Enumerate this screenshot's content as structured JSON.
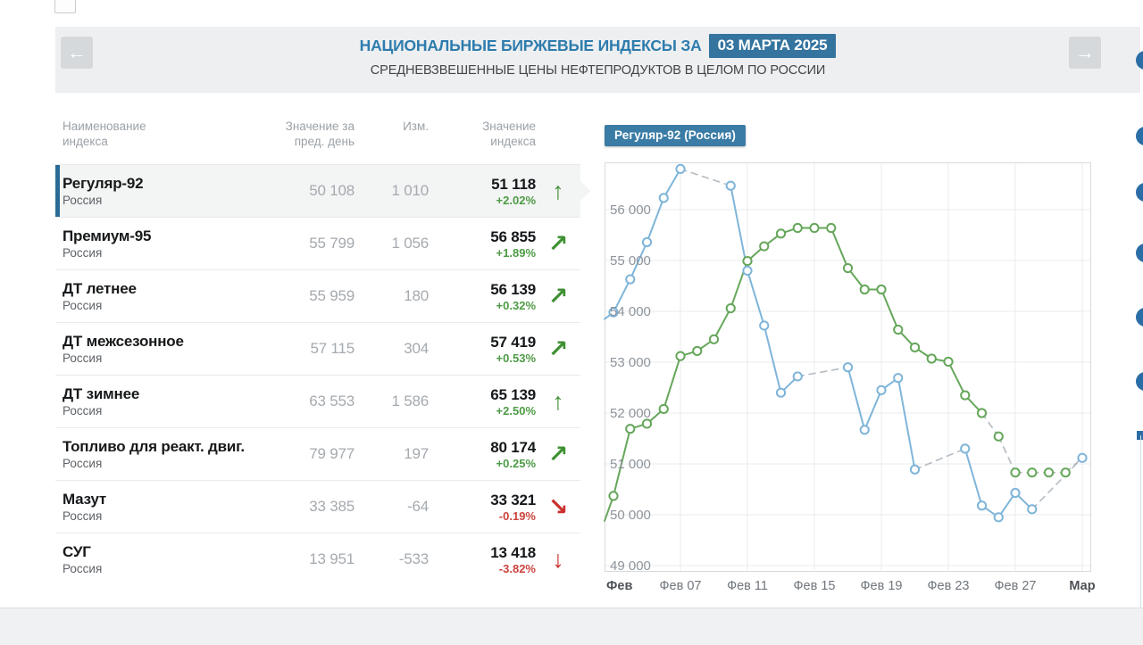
{
  "header": {
    "title": "НАЦИОНАЛЬНЫЕ БИРЖЕВЫЕ ИНДЕКСЫ ЗА",
    "date_badge": "03 МАРТА 2025",
    "subtitle": "СРЕДНЕВЗВЕШЕННЫЕ ЦЕНЫ НЕФТЕПРОДУКТОВ В ЦЕЛОМ ПО РОССИИ",
    "prev_arrow": "←",
    "next_arrow": "→"
  },
  "table": {
    "columns": [
      {
        "line1": "Наименование",
        "line2": "индекса"
      },
      {
        "line1": "Значение за",
        "line2": "пред. день"
      },
      {
        "line1": "Изм.",
        "line2": ""
      },
      {
        "line1": "Значение",
        "line2": "индекса"
      }
    ],
    "rows": [
      {
        "name": "Регуляр-92",
        "region": "Россия",
        "prev": "50 108",
        "change": "1 010",
        "value": "51 118",
        "pct": "+2.02%",
        "trend": "up",
        "selected": true
      },
      {
        "name": "Премиум-95",
        "region": "Россия",
        "prev": "55 799",
        "change": "1 056",
        "value": "56 855",
        "pct": "+1.89%",
        "trend": "up-right",
        "selected": false
      },
      {
        "name": "ДТ летнее",
        "region": "Россия",
        "prev": "55 959",
        "change": "180",
        "value": "56 139",
        "pct": "+0.32%",
        "trend": "up-right",
        "selected": false
      },
      {
        "name": "ДТ межсезонное",
        "region": "Россия",
        "prev": "57 115",
        "change": "304",
        "value": "57 419",
        "pct": "+0.53%",
        "trend": "up-right",
        "selected": false
      },
      {
        "name": "ДТ зимнее",
        "region": "Россия",
        "prev": "63 553",
        "change": "1 586",
        "value": "65 139",
        "pct": "+2.50%",
        "trend": "up",
        "selected": false
      },
      {
        "name": "Топливо для реакт. двиг.",
        "region": "Россия",
        "prev": "79 977",
        "change": "197",
        "value": "80 174",
        "pct": "+0.25%",
        "trend": "up-right",
        "selected": false
      },
      {
        "name": "Мазут",
        "region": "Россия",
        "prev": "33 385",
        "change": "-64",
        "value": "33 321",
        "pct": "-0.19%",
        "trend": "down-right",
        "selected": false
      },
      {
        "name": "СУГ",
        "region": "Россия",
        "prev": "13 951",
        "change": "-533",
        "value": "13 418",
        "pct": "-3.82%",
        "trend": "down",
        "selected": false
      }
    ]
  },
  "chart_data": {
    "type": "line",
    "title_badge": "Регуляр-92 (Россия)",
    "ylim": [
      48700,
      57100
    ],
    "grid": true,
    "y_ticks": [
      {
        "v": 56000,
        "label": "56 000"
      },
      {
        "v": 55000,
        "label": "55 000"
      },
      {
        "v": 54000,
        "label": "54 000"
      },
      {
        "v": 53000,
        "label": "53 000"
      },
      {
        "v": 52000,
        "label": "52 000"
      },
      {
        "v": 51000,
        "label": "51 000"
      },
      {
        "v": 50000,
        "label": "50 000"
      },
      {
        "v": 49000,
        "label": "49 000"
      }
    ],
    "x_ticks": [
      {
        "label": "Фев",
        "offset": 0,
        "bold": true,
        "align": "left"
      },
      {
        "label": "Фев 07",
        "offset": 4
      },
      {
        "label": "Фев 11",
        "offset": 8
      },
      {
        "label": "Фев 15",
        "offset": 12
      },
      {
        "label": "Фев 19",
        "offset": 16
      },
      {
        "label": "Фев 23",
        "offset": 20
      },
      {
        "label": "Фев 27",
        "offset": 24
      },
      {
        "label": "Мар",
        "offset": 28,
        "bold": true
      }
    ],
    "dash_color": "#b4bbc1",
    "note": "offset = days from first plotted point; dashed segments join non-trading / estimated days",
    "series": [
      {
        "name": "weighted-average-price",
        "color": "#66a75b",
        "points": [
          [
            -0.53,
            49880,
            "n"
          ],
          [
            0,
            50370
          ],
          [
            1,
            51690
          ],
          [
            2,
            51790
          ],
          [
            3,
            52080
          ],
          [
            4,
            53120
          ],
          [
            5,
            53220
          ],
          [
            6,
            53450
          ],
          [
            7,
            54060
          ],
          [
            8,
            54990
          ],
          [
            9,
            55280
          ],
          [
            10,
            55530
          ],
          [
            11,
            55640
          ],
          [
            12,
            55640
          ],
          [
            13,
            55640
          ],
          [
            14,
            54850
          ],
          [
            15,
            54430
          ],
          [
            16,
            54430
          ],
          [
            17,
            53640
          ],
          [
            18,
            53290
          ],
          [
            19,
            53070
          ],
          [
            20,
            53010
          ],
          [
            21,
            52350
          ],
          [
            22,
            52000,
            "d"
          ],
          [
            23,
            51540,
            "d"
          ],
          [
            24,
            50830,
            "d"
          ],
          [
            25,
            50830,
            "d"
          ],
          [
            26,
            50830,
            "d"
          ],
          [
            27,
            50830,
            "d"
          ],
          [
            28,
            51118,
            "n"
          ]
        ]
      },
      {
        "name": "index-value",
        "color": "#7fb5d9",
        "points": [
          [
            -0.53,
            53850,
            "n"
          ],
          [
            0,
            53980
          ],
          [
            1,
            54630
          ],
          [
            2,
            55360
          ],
          [
            3,
            56230
          ],
          [
            4,
            56800,
            "d"
          ],
          [
            7,
            56470
          ],
          [
            8,
            54800
          ],
          [
            9,
            53720
          ],
          [
            10,
            52400
          ],
          [
            11,
            52720,
            "d"
          ],
          [
            14,
            52900
          ],
          [
            15,
            51670
          ],
          [
            16,
            52450
          ],
          [
            17,
            52690
          ],
          [
            18,
            50890,
            "d"
          ],
          [
            21,
            51300
          ],
          [
            22,
            50180
          ],
          [
            23,
            49950
          ],
          [
            24,
            50430
          ],
          [
            25,
            50108,
            "d"
          ],
          [
            28,
            51118
          ]
        ]
      }
    ]
  },
  "colors": {
    "accent_blue": "#2e7cad",
    "badge_bg": "#34749f",
    "selected_bar": "#2b6a96",
    "up_green": "#3f9033",
    "down_red": "#c9302c",
    "line_green": "#66a75b",
    "line_blue": "#7fb5d9"
  },
  "edge_dots_count": 6
}
